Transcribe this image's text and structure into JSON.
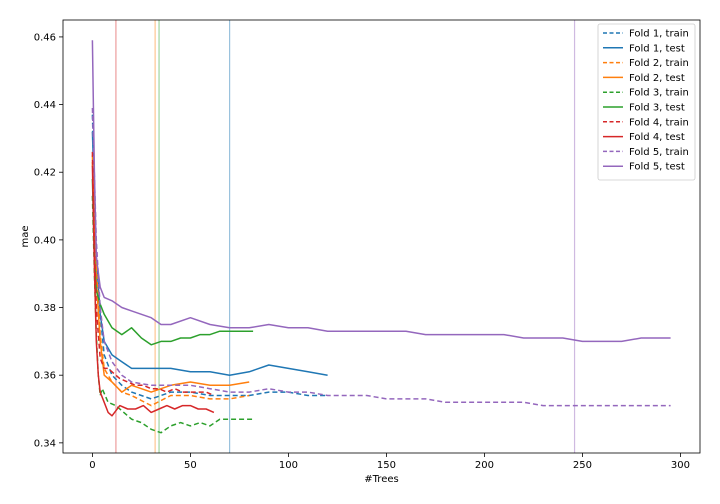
{
  "chart_data": {
    "type": "line",
    "title": "",
    "xlabel": "#Trees",
    "ylabel": "mae",
    "xlim": [
      -15,
      310
    ],
    "ylim": [
      0.337,
      0.465
    ],
    "xticks": [
      0,
      50,
      100,
      150,
      200,
      250,
      300
    ],
    "yticks": [
      0.34,
      0.36,
      0.38,
      0.4,
      0.42,
      0.44,
      0.46
    ],
    "ytick_labels": [
      "0.34",
      "0.36",
      "0.38",
      "0.40",
      "0.42",
      "0.44",
      "0.46"
    ],
    "grid": false,
    "legend_position": "top-right",
    "vertical_lines": [
      {
        "x": 12,
        "color": "#d62728"
      },
      {
        "x": 32,
        "color": "#ff7f0e"
      },
      {
        "x": 34,
        "color": "#2ca02c"
      },
      {
        "x": 70,
        "color": "#1f77b4"
      },
      {
        "x": 246,
        "color": "#9467bd"
      }
    ],
    "series": [
      {
        "name": "Fold 1, train",
        "color": "#1f77b4",
        "dashed": true,
        "x": [
          0,
          2,
          4,
          6,
          10,
          15,
          20,
          30,
          40,
          50,
          60,
          70,
          80,
          90,
          100,
          110,
          120
        ],
        "y": [
          0.437,
          0.395,
          0.378,
          0.366,
          0.36,
          0.357,
          0.355,
          0.353,
          0.355,
          0.355,
          0.354,
          0.354,
          0.354,
          0.355,
          0.355,
          0.354,
          0.354
        ]
      },
      {
        "name": "Fold 1, test",
        "color": "#1f77b4",
        "dashed": false,
        "x": [
          0,
          2,
          4,
          6,
          10,
          15,
          20,
          30,
          40,
          50,
          60,
          70,
          80,
          90,
          100,
          110,
          120
        ],
        "y": [
          0.432,
          0.395,
          0.378,
          0.37,
          0.366,
          0.364,
          0.362,
          0.362,
          0.362,
          0.361,
          0.361,
          0.36,
          0.361,
          0.363,
          0.362,
          0.361,
          0.36
        ]
      },
      {
        "name": "Fold 2, train",
        "color": "#ff7f0e",
        "dashed": true,
        "x": [
          0,
          2,
          4,
          6,
          10,
          15,
          20,
          30,
          40,
          50,
          60,
          70,
          80
        ],
        "y": [
          0.423,
          0.392,
          0.372,
          0.362,
          0.358,
          0.355,
          0.354,
          0.351,
          0.354,
          0.354,
          0.353,
          0.353,
          0.354
        ]
      },
      {
        "name": "Fold 2, test",
        "color": "#ff7f0e",
        "dashed": false,
        "x": [
          0,
          2,
          4,
          6,
          10,
          15,
          20,
          30,
          40,
          50,
          60,
          70,
          80
        ],
        "y": [
          0.425,
          0.388,
          0.37,
          0.36,
          0.358,
          0.355,
          0.357,
          0.355,
          0.357,
          0.358,
          0.357,
          0.357,
          0.358
        ]
      },
      {
        "name": "Fold 3, train",
        "color": "#2ca02c",
        "dashed": true,
        "x": [
          0,
          1,
          2,
          3,
          4,
          5,
          8,
          12,
          16,
          20,
          25,
          30,
          35,
          40,
          45,
          50,
          55,
          60,
          65,
          70,
          75,
          82
        ],
        "y": [
          0.413,
          0.39,
          0.372,
          0.36,
          0.354,
          0.356,
          0.352,
          0.351,
          0.349,
          0.347,
          0.346,
          0.344,
          0.343,
          0.345,
          0.346,
          0.345,
          0.346,
          0.345,
          0.347,
          0.347,
          0.347,
          0.347
        ]
      },
      {
        "name": "Fold 3, test",
        "color": "#2ca02c",
        "dashed": false,
        "x": [
          0,
          1,
          2,
          4,
          6,
          10,
          15,
          20,
          25,
          30,
          35,
          40,
          45,
          50,
          55,
          60,
          65,
          70,
          75,
          82
        ],
        "y": [
          0.418,
          0.395,
          0.385,
          0.381,
          0.378,
          0.374,
          0.372,
          0.374,
          0.371,
          0.369,
          0.37,
          0.37,
          0.371,
          0.371,
          0.372,
          0.372,
          0.373,
          0.373,
          0.373,
          0.373
        ]
      },
      {
        "name": "Fold 4, train",
        "color": "#d62728",
        "dashed": true,
        "x": [
          0,
          1,
          2,
          3,
          4,
          6,
          8,
          10,
          14,
          18,
          22,
          26,
          30,
          34,
          38,
          42,
          46,
          50,
          54,
          58,
          62
        ],
        "y": [
          0.426,
          0.398,
          0.38,
          0.372,
          0.365,
          0.362,
          0.362,
          0.361,
          0.359,
          0.358,
          0.357,
          0.357,
          0.356,
          0.356,
          0.355,
          0.356,
          0.355,
          0.355,
          0.355,
          0.355,
          0.354
        ]
      },
      {
        "name": "Fold 4, test",
        "color": "#d62728",
        "dashed": false,
        "x": [
          0,
          1,
          2,
          3,
          4,
          6,
          8,
          10,
          14,
          18,
          22,
          26,
          30,
          34,
          38,
          42,
          46,
          50,
          54,
          58,
          62
        ],
        "y": [
          0.422,
          0.392,
          0.37,
          0.36,
          0.355,
          0.352,
          0.349,
          0.348,
          0.351,
          0.35,
          0.35,
          0.351,
          0.349,
          0.35,
          0.351,
          0.35,
          0.351,
          0.351,
          0.35,
          0.35,
          0.349
        ]
      },
      {
        "name": "Fold 5, train",
        "color": "#9467bd",
        "dashed": true,
        "x": [
          0,
          2,
          4,
          6,
          10,
          15,
          20,
          30,
          40,
          50,
          60,
          70,
          80,
          90,
          100,
          110,
          120,
          130,
          140,
          150,
          160,
          170,
          180,
          190,
          200,
          210,
          220,
          230,
          240,
          250,
          260,
          270,
          280,
          290,
          295
        ],
        "y": [
          0.439,
          0.4,
          0.38,
          0.37,
          0.364,
          0.36,
          0.358,
          0.357,
          0.357,
          0.357,
          0.356,
          0.355,
          0.355,
          0.356,
          0.355,
          0.355,
          0.354,
          0.354,
          0.354,
          0.353,
          0.353,
          0.353,
          0.352,
          0.352,
          0.352,
          0.352,
          0.352,
          0.351,
          0.351,
          0.351,
          0.351,
          0.351,
          0.351,
          0.351,
          0.351
        ]
      },
      {
        "name": "Fold 5, test",
        "color": "#9467bd",
        "dashed": false,
        "x": [
          0,
          1,
          2,
          4,
          6,
          10,
          15,
          20,
          25,
          30,
          35,
          40,
          50,
          60,
          70,
          80,
          90,
          100,
          110,
          120,
          130,
          140,
          150,
          160,
          170,
          180,
          190,
          200,
          210,
          220,
          230,
          240,
          250,
          260,
          270,
          280,
          290,
          295
        ],
        "y": [
          0.459,
          0.42,
          0.395,
          0.386,
          0.383,
          0.382,
          0.38,
          0.379,
          0.378,
          0.377,
          0.375,
          0.375,
          0.377,
          0.375,
          0.374,
          0.374,
          0.375,
          0.374,
          0.374,
          0.373,
          0.373,
          0.373,
          0.373,
          0.373,
          0.372,
          0.372,
          0.372,
          0.372,
          0.372,
          0.371,
          0.371,
          0.371,
          0.37,
          0.37,
          0.37,
          0.371,
          0.371,
          0.371
        ]
      }
    ]
  }
}
